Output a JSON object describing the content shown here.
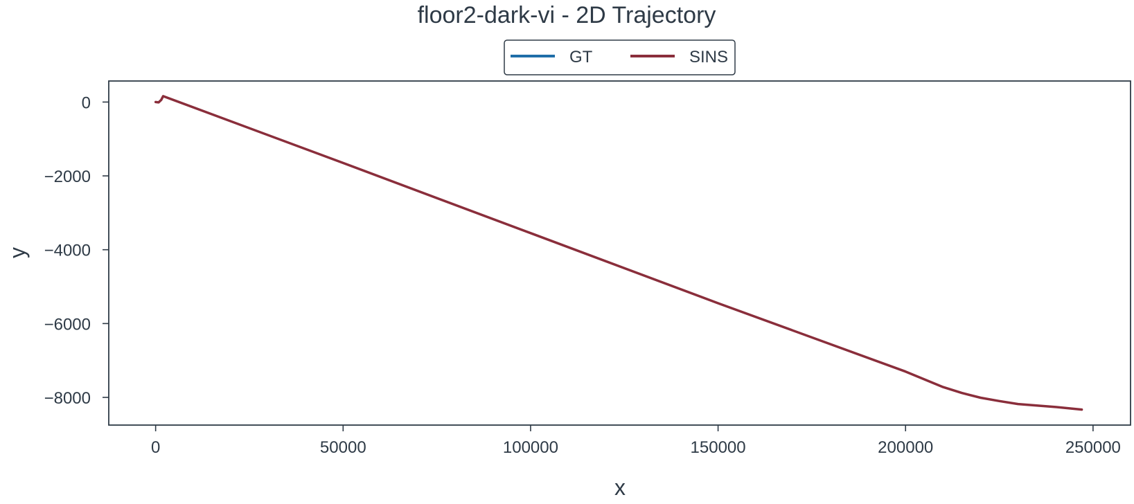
{
  "chart_data": {
    "type": "line",
    "title": "floor2-dark-vi - 2D Trajectory",
    "xlabel": "x",
    "ylabel": "y",
    "xlim": [
      -12500,
      260000
    ],
    "ylim": [
      -8750,
      570
    ],
    "xticks": [
      0,
      50000,
      100000,
      150000,
      200000,
      250000
    ],
    "xtick_labels": [
      "0",
      "50000",
      "100000",
      "150000",
      "200000",
      "250000"
    ],
    "yticks": [
      0,
      -2000,
      -4000,
      -6000,
      -8000
    ],
    "ytick_labels": [
      "0",
      "−2000",
      "−4000",
      "−6000",
      "−8000"
    ],
    "grid": false,
    "legend": {
      "placement": "top-center-outside",
      "columns": 2
    },
    "series": [
      {
        "name": "GT",
        "color": "#1f6ea8",
        "x": [],
        "y": []
      },
      {
        "name": "SINS",
        "color": "#8a2e3b",
        "x": [
          0,
          800,
          1500,
          2000,
          50000,
          100000,
          150000,
          200000,
          210000,
          215000,
          220000,
          225000,
          230000,
          240000,
          247000
        ],
        "y": [
          0,
          -10,
          60,
          160,
          -1650,
          -3550,
          -5450,
          -7300,
          -7720,
          -7880,
          -8010,
          -8100,
          -8180,
          -8260,
          -8330
        ]
      }
    ]
  }
}
